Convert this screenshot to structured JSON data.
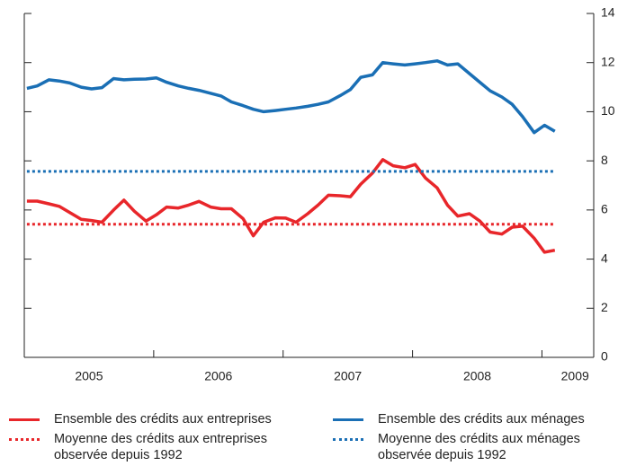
{
  "chart_data": {
    "type": "line",
    "x": [
      2005.02,
      2005.1,
      2005.19,
      2005.27,
      2005.35,
      2005.44,
      2005.52,
      2005.6,
      2005.69,
      2005.77,
      2005.85,
      2005.94,
      2006.02,
      2006.1,
      2006.19,
      2006.27,
      2006.35,
      2006.44,
      2006.52,
      2006.6,
      2006.69,
      2006.77,
      2006.85,
      2006.94,
      2007.02,
      2007.1,
      2007.19,
      2007.27,
      2007.35,
      2007.44,
      2007.52,
      2007.6,
      2007.69,
      2007.77,
      2007.85,
      2007.94,
      2008.02,
      2008.1,
      2008.19,
      2008.27,
      2008.35,
      2008.44,
      2008.52,
      2008.6,
      2008.69,
      2008.77,
      2008.85,
      2008.94,
      2009.02,
      2009.1
    ],
    "series": [
      {
        "name": "Ensemble des crédits aux entreprises",
        "color": "#e8262a",
        "dash": false,
        "values": [
          6.36,
          6.36,
          6.25,
          6.15,
          5.9,
          5.62,
          5.57,
          5.5,
          6.0,
          6.4,
          5.95,
          5.55,
          5.8,
          6.12,
          6.08,
          6.2,
          6.35,
          6.12,
          6.05,
          6.05,
          5.65,
          4.95,
          5.5,
          5.68,
          5.67,
          5.5,
          5.85,
          6.2,
          6.6,
          6.58,
          6.54,
          7.05,
          7.5,
          8.05,
          7.8,
          7.72,
          7.85,
          7.3,
          6.9,
          6.2,
          5.75,
          5.85,
          5.55,
          5.1,
          5.02,
          5.3,
          5.34,
          4.85,
          4.28,
          4.36
        ]
      },
      {
        "name": "Ensemble des crédits aux ménages",
        "color": "#1a6fb5",
        "dash": false,
        "values": [
          10.95,
          11.05,
          11.3,
          11.25,
          11.17,
          11.0,
          10.93,
          10.98,
          11.35,
          11.3,
          11.32,
          11.33,
          11.38,
          11.2,
          11.05,
          10.95,
          10.87,
          10.75,
          10.64,
          10.4,
          10.25,
          10.1,
          10.0,
          10.05,
          10.1,
          10.15,
          10.22,
          10.3,
          10.4,
          10.65,
          10.9,
          11.4,
          11.5,
          12.0,
          11.95,
          11.9,
          11.95,
          12.0,
          12.07,
          11.9,
          11.95,
          11.55,
          11.2,
          10.85,
          10.6,
          10.3,
          9.8,
          9.15,
          9.45,
          9.2
        ]
      },
      {
        "name": "Moyenne des crédits aux entreprises observée depuis 1992",
        "color": "#e8262a",
        "dash": true,
        "values": [
          5.42,
          5.42,
          5.42,
          5.42,
          5.42,
          5.42,
          5.42,
          5.42,
          5.42,
          5.42,
          5.42,
          5.42,
          5.42,
          5.42,
          5.42,
          5.42,
          5.42,
          5.42,
          5.42,
          5.42,
          5.42,
          5.42,
          5.42,
          5.42,
          5.42,
          5.42,
          5.42,
          5.42,
          5.42,
          5.42,
          5.42,
          5.42,
          5.42,
          5.42,
          5.42,
          5.42,
          5.42,
          5.42,
          5.42,
          5.42,
          5.42,
          5.42,
          5.42,
          5.42,
          5.42,
          5.42,
          5.42,
          5.42,
          5.42,
          5.42
        ]
      },
      {
        "name": "Moyenne des crédits aux ménages observée depuis 1992",
        "color": "#1a6fb5",
        "dash": true,
        "values": [
          7.57,
          7.57,
          7.57,
          7.57,
          7.57,
          7.57,
          7.57,
          7.57,
          7.57,
          7.57,
          7.57,
          7.57,
          7.57,
          7.57,
          7.57,
          7.57,
          7.57,
          7.57,
          7.57,
          7.57,
          7.57,
          7.57,
          7.57,
          7.57,
          7.57,
          7.57,
          7.57,
          7.57,
          7.57,
          7.57,
          7.57,
          7.57,
          7.57,
          7.57,
          7.57,
          7.57,
          7.57,
          7.57,
          7.57,
          7.57,
          7.57,
          7.57,
          7.57,
          7.57,
          7.57,
          7.57,
          7.57,
          7.57,
          7.57,
          7.57
        ]
      }
    ],
    "xlim": [
      2005,
      2009.4
    ],
    "xticks": [
      2005,
      2006,
      2007,
      2008,
      2009
    ],
    "ylim": [
      0,
      14
    ],
    "yticks": [
      0,
      2,
      4,
      6,
      8,
      10,
      12,
      14
    ]
  }
}
